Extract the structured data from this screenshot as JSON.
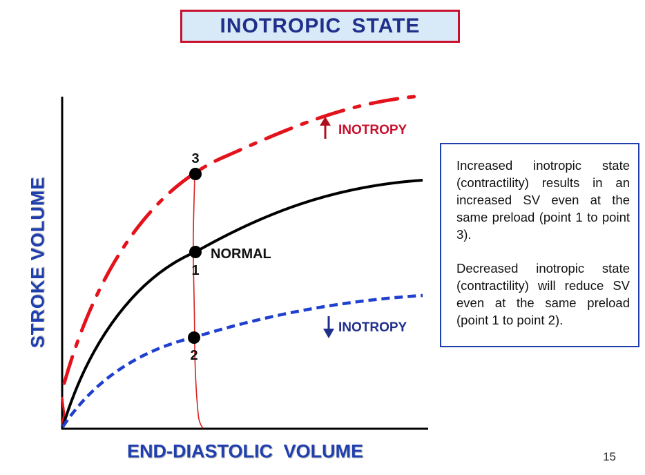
{
  "title": "INOTROPIC  STATE",
  "axes": {
    "x_label": "END-DIASTOLIC  VOLUME",
    "y_label": "STROKE  VOLUME"
  },
  "curves": [
    {
      "id": "normal",
      "label": "NORMAL",
      "color": "#000000",
      "style": "solid"
    },
    {
      "id": "increased",
      "label": "INOTROPY",
      "arrow": "up",
      "color": "#e3121b",
      "style": "dash-dot"
    },
    {
      "id": "decreased",
      "label": "INOTROPY",
      "arrow": "down",
      "color": "#1f3fcf",
      "style": "dashed"
    }
  ],
  "points": [
    {
      "label": "1",
      "curve": "normal"
    },
    {
      "label": "2",
      "curve": "decreased"
    },
    {
      "label": "3",
      "curve": "increased"
    }
  ],
  "info": {
    "paragraph1": "Increased inotropic state (contractility) results in an increased SV even at the same preload (point 1 to point 3).",
    "paragraph2": "Decreased inotropic state (contractility) will reduce SV even at the same preload (point 1 to point 2)."
  },
  "page_number": "15",
  "colors": {
    "title_border": "#c8102e",
    "title_fill": "#d8e9f7",
    "title_text": "#1f2f8a",
    "axis_label": "#1f3fae",
    "annotation_line": "#d62020"
  }
}
